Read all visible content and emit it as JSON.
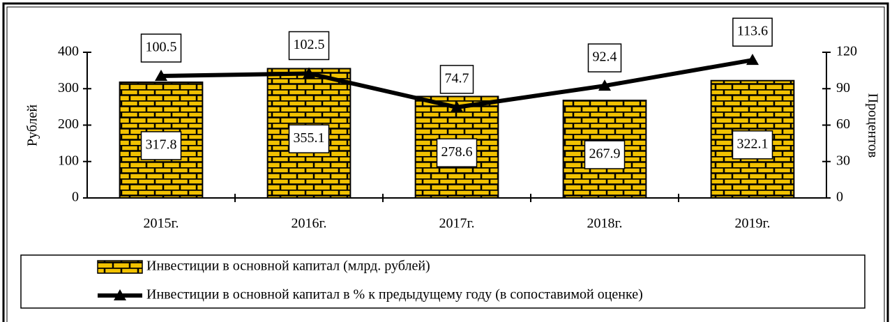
{
  "chart_data": {
    "type": "bar",
    "categories": [
      "2015г.",
      "2016г.",
      "2017г.",
      "2018г.",
      "2019г."
    ],
    "series": [
      {
        "name": "Инвестиции в основной капитал (млрд. рублей)",
        "color": "#f2c200",
        "values": [
          317.8,
          355.1,
          278.6,
          267.9,
          322.1
        ]
      },
      {
        "name": "Инвестиции в основной капитал в % к предыдущему году (в сопоставимой оценке)",
        "color": "#000000",
        "type": "line",
        "axis": "y2",
        "values": [
          100.5,
          102.5,
          74.7,
          92.4,
          113.6
        ]
      }
    ],
    "ylabel": "Рублей",
    "y2label": "Процентов",
    "ylim": [
      0,
      400
    ],
    "yticks": [
      0,
      100,
      200,
      300,
      400
    ],
    "y2lim": [
      0,
      120
    ],
    "y2ticks": [
      0,
      30,
      60,
      90,
      120
    ]
  }
}
